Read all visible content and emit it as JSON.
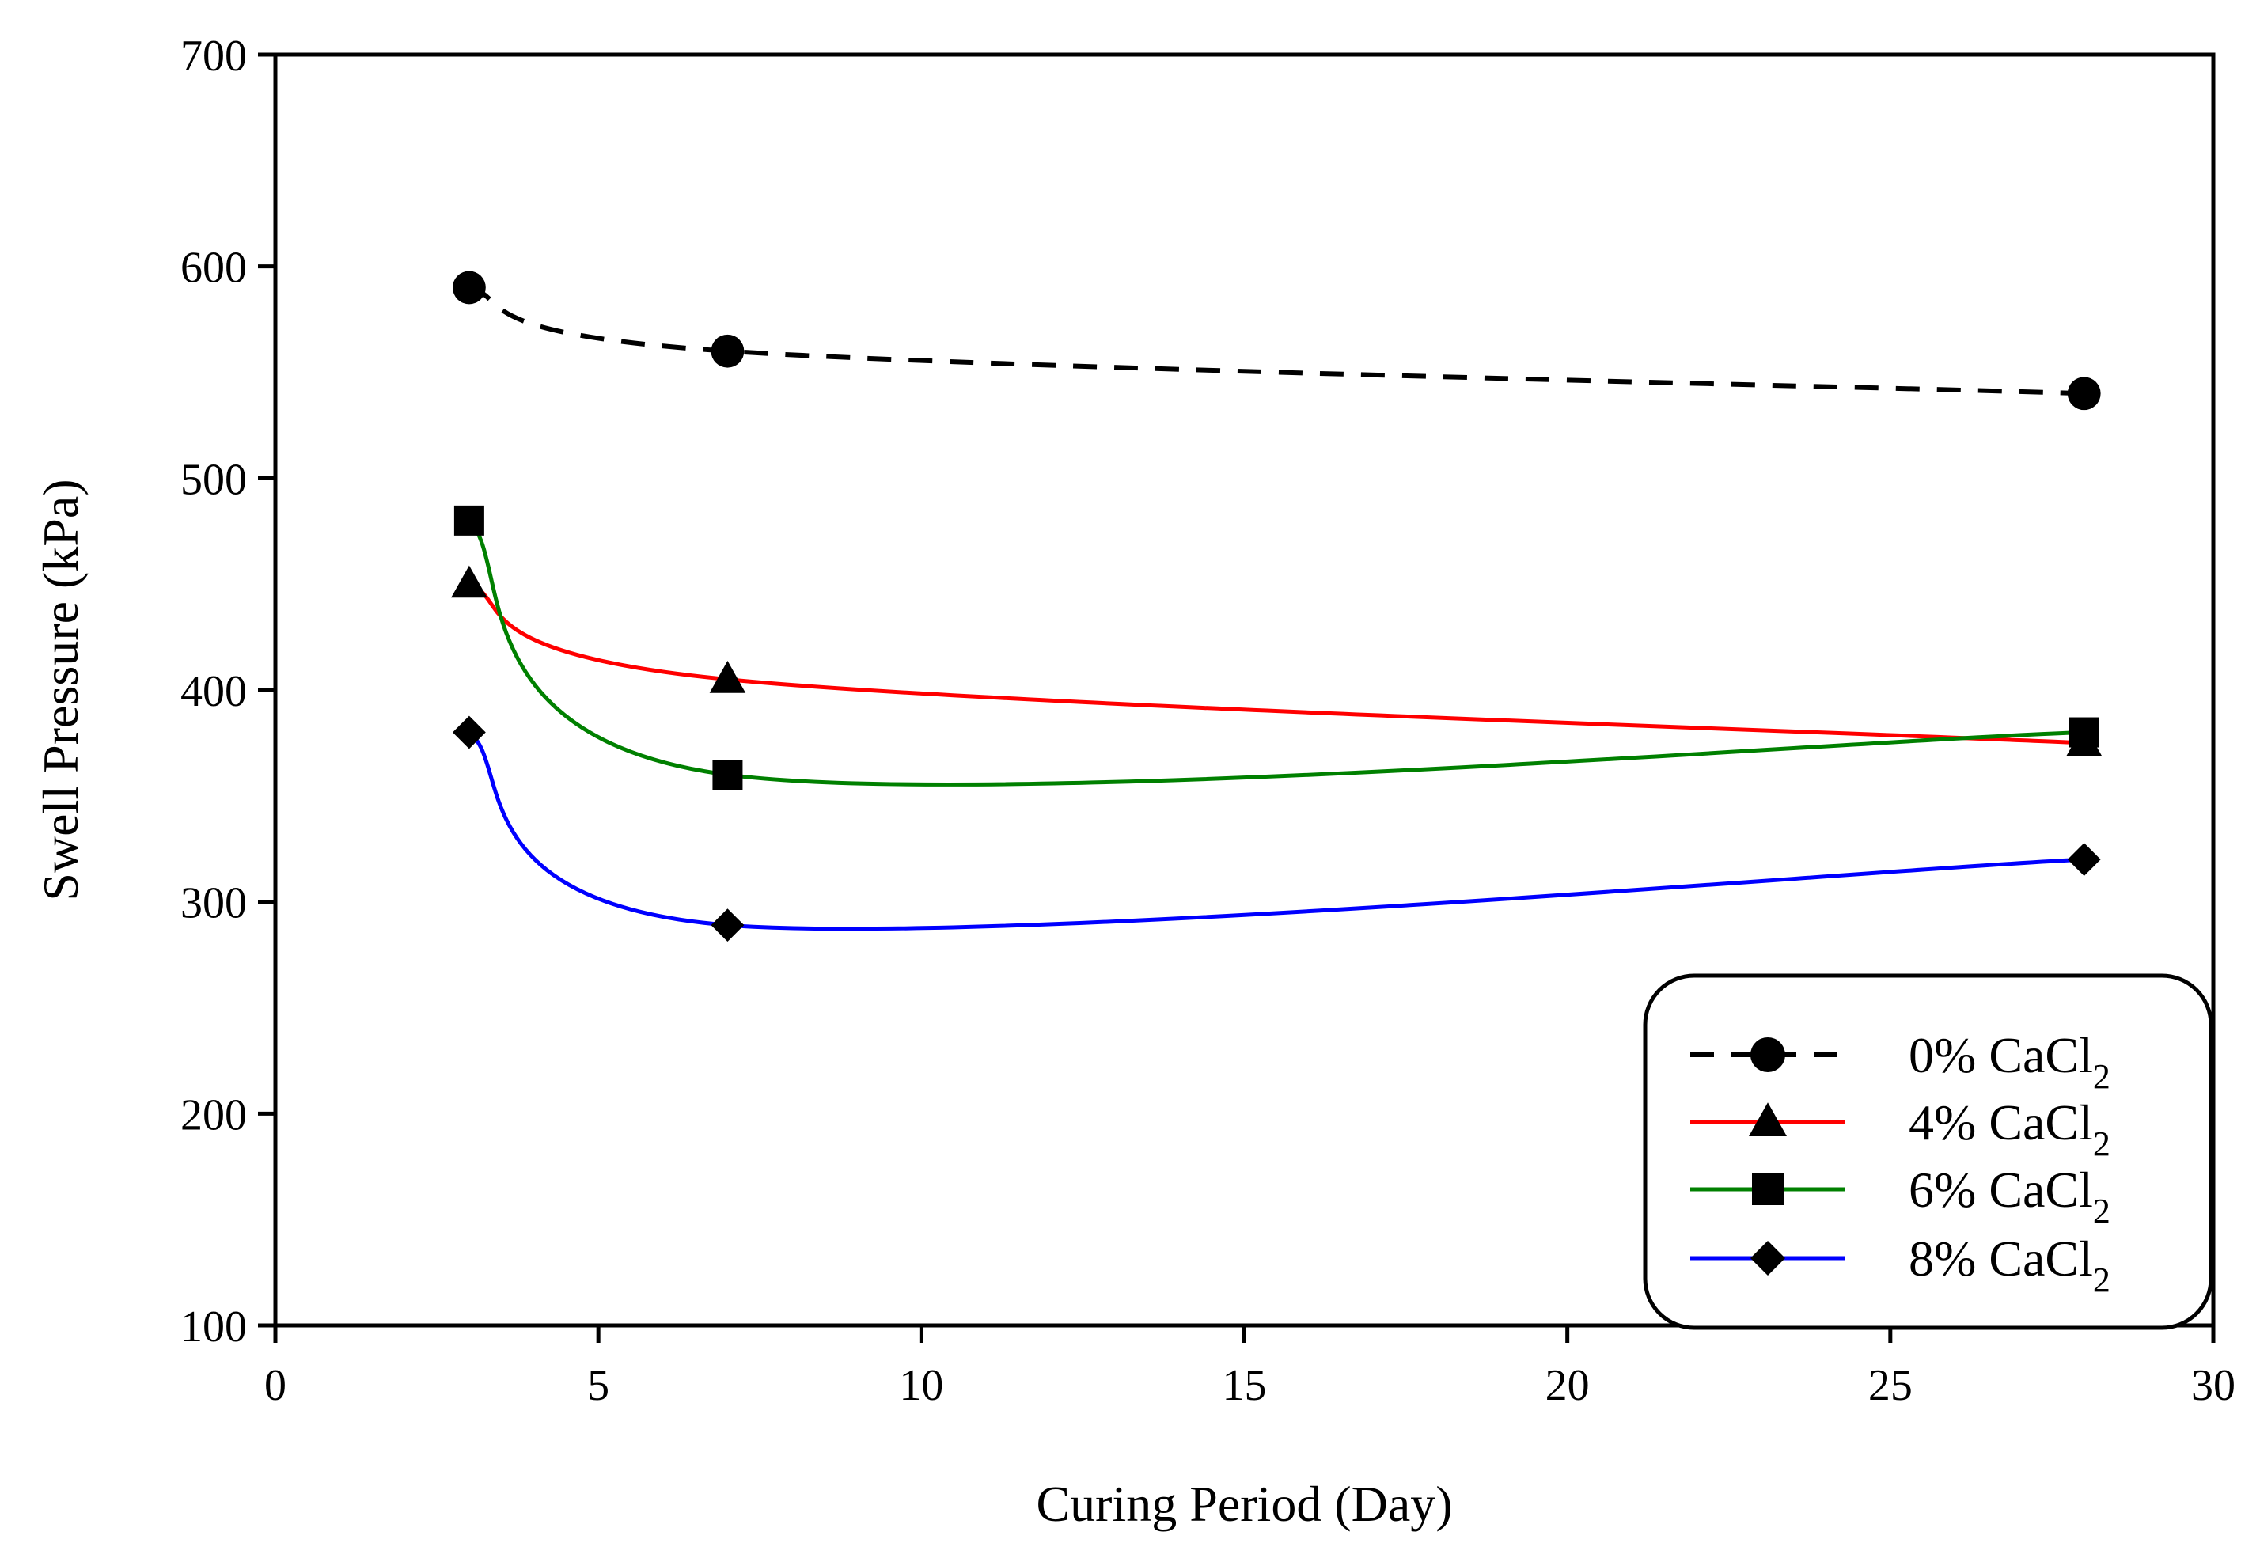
{
  "chart_data": {
    "type": "line",
    "title": "",
    "xlabel": "Curing Period (Day)",
    "ylabel": "Swell Pressure (kPa)",
    "xlim": [
      0,
      30
    ],
    "ylim": [
      100,
      700
    ],
    "xticks": [
      0,
      5,
      10,
      15,
      20,
      25,
      30
    ],
    "yticks": [
      100,
      200,
      300,
      400,
      500,
      600,
      700
    ],
    "x": [
      3,
      7,
      28
    ],
    "grid": false,
    "legend_position": "bottom-right",
    "series": [
      {
        "name": "0% CaCl",
        "subscript": "2",
        "values": [
          590,
          560,
          540
        ],
        "color": "#000000",
        "dash": "dashed",
        "marker": "circle"
      },
      {
        "name": "4% CaCl",
        "subscript": "2",
        "values": [
          450,
          405,
          375
        ],
        "color": "#ff0000",
        "dash": "solid",
        "marker": "triangle"
      },
      {
        "name": "6% CaCl",
        "subscript": "2",
        "values": [
          480,
          360,
          380
        ],
        "color": "#008000",
        "dash": "solid",
        "marker": "square"
      },
      {
        "name": "8% CaCl",
        "subscript": "2",
        "values": [
          380,
          289,
          320
        ],
        "color": "#0000ff",
        "dash": "solid",
        "marker": "diamond"
      }
    ]
  }
}
